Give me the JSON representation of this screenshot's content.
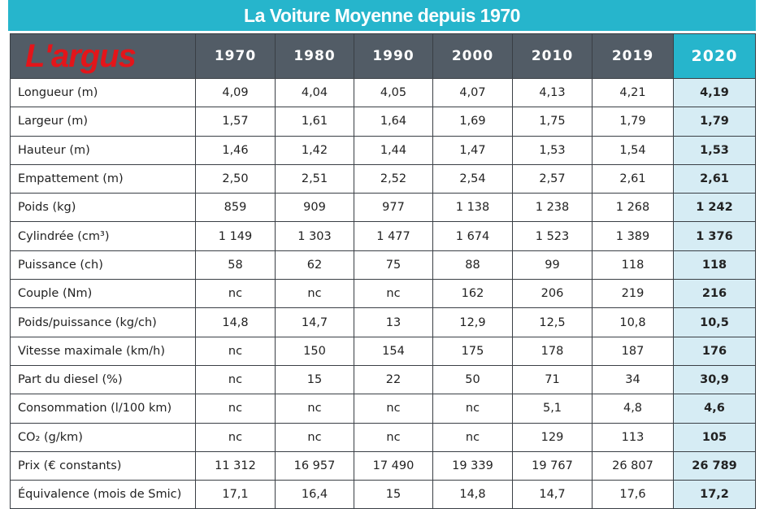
{
  "title": "La Voiture Moyenne depuis 1970",
  "logo": "L'argus",
  "colors": {
    "accent": "#26b5cc",
    "header": "#525c66",
    "highlight": "#d6ecf4",
    "logo": "#e3151a"
  },
  "years": [
    "1970",
    "1980",
    "1990",
    "2000",
    "2010",
    "2019",
    "2020"
  ],
  "rows": [
    {
      "label": "Longueur (m)",
      "values": [
        "4,09",
        "4,04",
        "4,05",
        "4,07",
        "4,13",
        "4,21",
        "4,19"
      ]
    },
    {
      "label": "Largeur (m)",
      "values": [
        "1,57",
        "1,61",
        "1,64",
        "1,69",
        "1,75",
        "1,79",
        "1,79"
      ]
    },
    {
      "label": "Hauteur (m)",
      "values": [
        "1,46",
        "1,42",
        "1,44",
        "1,47",
        "1,53",
        "1,54",
        "1,53"
      ]
    },
    {
      "label": "Empattement (m)",
      "values": [
        "2,50",
        "2,51",
        "2,52",
        "2,54",
        "2,57",
        "2,61",
        "2,61"
      ]
    },
    {
      "label": "Poids (kg)",
      "values": [
        "859",
        "909",
        "977",
        "1 138",
        "1 238",
        "1 268",
        "1 242"
      ]
    },
    {
      "label": "Cylindrée (cm³)",
      "values": [
        "1 149",
        "1 303",
        "1 477",
        "1 674",
        "1 523",
        "1 389",
        "1 376"
      ]
    },
    {
      "label": "Puissance (ch)",
      "values": [
        "58",
        "62",
        "75",
        "88",
        "99",
        "118",
        "118"
      ]
    },
    {
      "label": "Couple (Nm)",
      "values": [
        "nc",
        "nc",
        "nc",
        "162",
        "206",
        "219",
        "216"
      ]
    },
    {
      "label": "Poids/puissance (kg/ch)",
      "values": [
        "14,8",
        "14,7",
        "13",
        "12,9",
        "12,5",
        "10,8",
        "10,5"
      ]
    },
    {
      "label": "Vitesse maximale (km/h)",
      "values": [
        "nc",
        "150",
        "154",
        "175",
        "178",
        "187",
        "176"
      ]
    },
    {
      "label": "Part du diesel (%)",
      "values": [
        "nc",
        "15",
        "22",
        "50",
        "71",
        "34",
        "30,9"
      ]
    },
    {
      "label": "Consommation (l/100 km)",
      "values": [
        "nc",
        "nc",
        "nc",
        "nc",
        "5,1",
        "4,8",
        "4,6"
      ]
    },
    {
      "label": "CO₂ (g/km)",
      "values": [
        "nc",
        "nc",
        "nc",
        "nc",
        "129",
        "113",
        "105"
      ]
    },
    {
      "label": "Prix (€ constants)",
      "values": [
        "11 312",
        "16 957",
        "17 490",
        "19 339",
        "19 767",
        "26 807",
        "26 789"
      ]
    },
    {
      "label": "Équivalence (mois de Smic)",
      "values": [
        "17,1",
        "16,4",
        "15",
        "14,8",
        "14,7",
        "17,6",
        "17,2"
      ]
    }
  ]
}
